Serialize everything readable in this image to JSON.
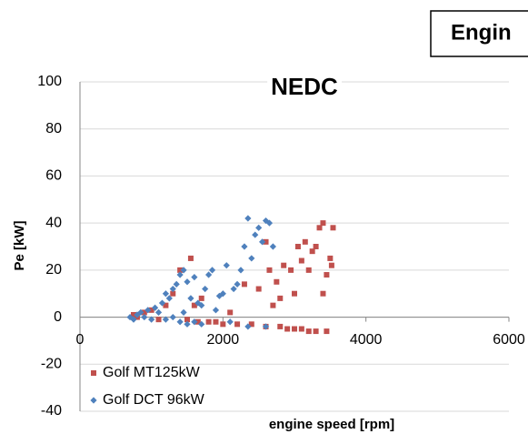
{
  "chart_data": {
    "type": "scatter",
    "title": "NEDC",
    "annotation": "Engin",
    "x_label": "engine speed [rpm]",
    "y_label": "Pe [kW]",
    "xlim": [
      0,
      6000
    ],
    "ylim": [
      -40,
      100
    ],
    "xticks": [
      0,
      2000,
      4000,
      6000
    ],
    "yticks": [
      -40,
      -20,
      0,
      20,
      40,
      60,
      80,
      100
    ],
    "grid": true,
    "legend": "lower left",
    "series": [
      {
        "name": "Golf MT125kW",
        "color": "#c0504d",
        "marker": "square",
        "x": [
          750,
          800,
          900,
          1000,
          1100,
          1200,
          1300,
          1400,
          1500,
          1550,
          1600,
          1650,
          1700,
          1800,
          1900,
          2000,
          2100,
          2200,
          2300,
          2400,
          2500,
          2600,
          2650,
          2700,
          2750,
          2800,
          2850,
          2900,
          2950,
          3000,
          3050,
          3100,
          3150,
          3200,
          3250,
          3300,
          3350,
          3400,
          3450,
          3500,
          3520,
          3540,
          3450,
          3400,
          3300,
          3200,
          3100,
          3000,
          2800,
          2600
        ],
        "values": [
          1,
          0,
          2,
          3,
          -1,
          5,
          10,
          20,
          -1,
          25,
          5,
          -2,
          8,
          -2,
          -2,
          -3,
          2,
          -3,
          14,
          -3,
          12,
          -4,
          20,
          5,
          15,
          -4,
          22,
          -5,
          20,
          -5,
          30,
          -5,
          32,
          -6,
          28,
          -6,
          38,
          40,
          -6,
          25,
          22,
          38,
          18,
          10,
          30,
          20,
          24,
          10,
          8,
          32
        ]
      },
      {
        "name": "Golf DCT 96kW",
        "color": "#4f81bd",
        "marker": "diamond",
        "x": [
          700,
          750,
          800,
          850,
          900,
          950,
          1000,
          1050,
          1100,
          1150,
          1200,
          1250,
          1300,
          1350,
          1400,
          1450,
          1500,
          1550,
          1600,
          1650,
          1700,
          1750,
          1800,
          1850,
          1900,
          1950,
          2000,
          2050,
          2100,
          2150,
          2200,
          2250,
          2300,
          2350,
          2400,
          2450,
          2500,
          2550,
          2600,
          2650,
          1400,
          1500,
          1300,
          1200,
          1600,
          1450,
          2350,
          2600,
          2700,
          1700
        ],
        "values": [
          0,
          -1,
          1,
          2,
          0,
          3,
          -1,
          4,
          2,
          6,
          10,
          8,
          12,
          14,
          18,
          20,
          15,
          8,
          17,
          6,
          5,
          12,
          18,
          20,
          3,
          9,
          10,
          22,
          -2,
          12,
          14,
          20,
          30,
          42,
          25,
          35,
          38,
          32,
          41,
          40,
          -2,
          -3,
          0,
          -1,
          -2,
          2,
          -4,
          -4,
          30,
          -3
        ]
      }
    ]
  }
}
